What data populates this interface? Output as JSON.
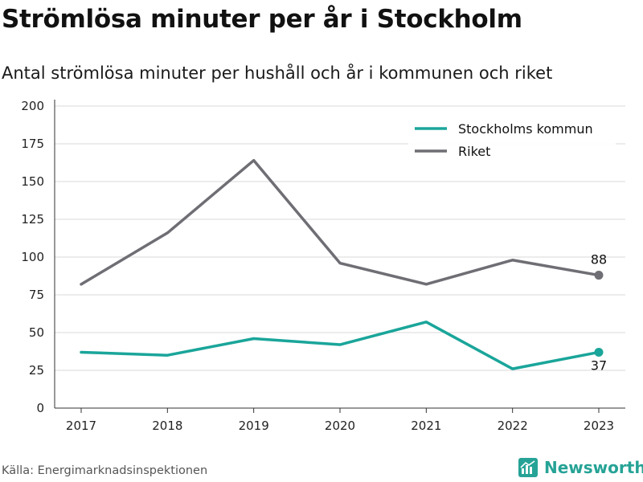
{
  "header": {
    "title": "Strömlösa minuter per år i Stockholm",
    "subtitle": "Antal strömlösa minuter per hushåll och år i kommunen och riket"
  },
  "footer": {
    "source": "Källa: Energimarknadsinspektionen",
    "brand": "Newsworthy",
    "brand_icon": "bar-chart-logo-icon"
  },
  "colors": {
    "stockholm": "#1aa59a",
    "riket": "#6e6e74",
    "grid": "#d9d9d9",
    "axis": "#333333",
    "brand": "#26a396"
  },
  "chart_data": {
    "type": "line",
    "x": [
      "2017",
      "2018",
      "2019",
      "2020",
      "2021",
      "2022",
      "2023"
    ],
    "series": [
      {
        "name": "Stockholms kommun",
        "values": [
          37,
          35,
          46,
          42,
          57,
          26,
          37
        ],
        "color": "#1aa59a"
      },
      {
        "name": "Riket",
        "values": [
          82,
          116,
          164,
          96,
          82,
          98,
          88
        ],
        "color": "#6e6e74"
      }
    ],
    "yticks": [
      0,
      25,
      50,
      75,
      100,
      125,
      150,
      175,
      200
    ],
    "ylim": [
      0,
      200
    ],
    "grid": true,
    "legend_position": "top-right",
    "end_labels": [
      "37",
      "88"
    ]
  }
}
